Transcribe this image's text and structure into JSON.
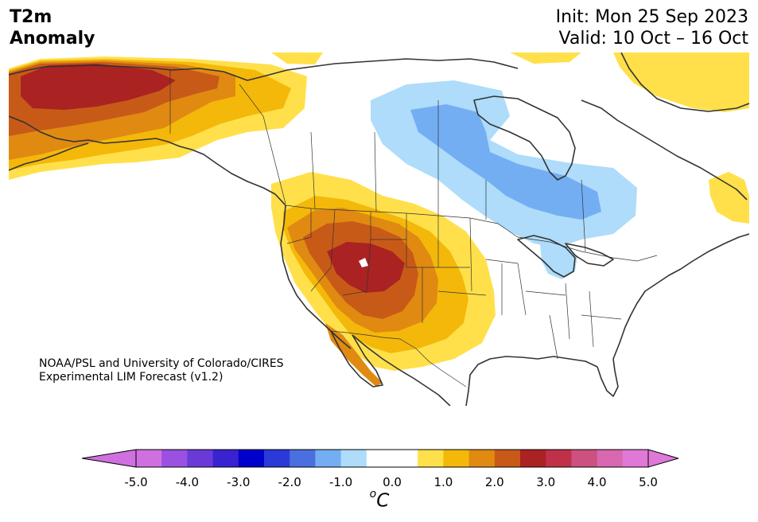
{
  "title": {
    "line1": "T2m",
    "line2": "Anomaly"
  },
  "dates": {
    "init": "Init: Mon 25 Sep 2023",
    "valid": "Valid: 10 Oct – 16 Oct"
  },
  "credit": {
    "line1": "NOAA/PSL and University of Colorado/CIRES",
    "line2": "Experimental LIM Forecast (v1.2)"
  },
  "colorbar": {
    "unit_main": "C",
    "unit_sup": "o",
    "ticks": [
      "-5.0",
      "-4.0",
      "-3.0",
      "-2.0",
      "-1.0",
      "0.0",
      "1.0",
      "2.0",
      "3.0",
      "4.0",
      "5.0"
    ],
    "colors": [
      "#d070e0",
      "#9a50e0",
      "#6a3ad8",
      "#3a22d0",
      "#0000cc",
      "#2a3ad8",
      "#4a70e0",
      "#74aef2",
      "#aedcfa",
      "#ffffff",
      "#ffffff",
      "#ffe04a",
      "#f4b80a",
      "#e08a12",
      "#c85a18",
      "#aa2222",
      "#c03048",
      "#cc5080",
      "#d868b0",
      "#e078d8"
    ],
    "over_color": "#e078d8",
    "under_color": "#d070e0"
  },
  "map": {
    "ocean_color": "#ffffff",
    "outline_color": "#333333",
    "anomaly_colors": {
      "plus_1": "#ffe04a",
      "plus_1_5": "#f4b80a",
      "plus_2": "#e08a12",
      "plus_2_5": "#c85a18",
      "plus_3": "#aa2222",
      "minus_1": "#aedcfa",
      "minus_1_5": "#74aef2"
    }
  }
}
